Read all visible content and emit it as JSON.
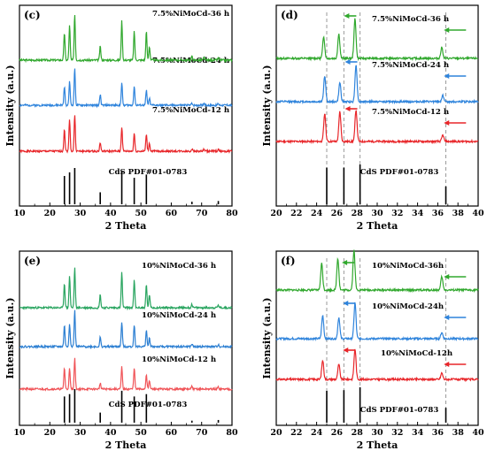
{
  "chart_data": [
    {
      "type": "line",
      "panel_label": "(c)",
      "xlabel": "2 Theta",
      "ylabel": "Intensity (a.u.)",
      "xlim": [
        10,
        80
      ],
      "xticks": [
        10,
        20,
        30,
        40,
        50,
        60,
        70,
        80
      ],
      "reference": {
        "name": "CdS PDF#01-0783",
        "peaks": [
          [
            24.8,
            0.78
          ],
          [
            26.5,
            0.88
          ],
          [
            28.2,
            1.0
          ],
          [
            36.6,
            0.33
          ],
          [
            43.7,
            0.9
          ],
          [
            47.8,
            0.73
          ],
          [
            51.8,
            0.82
          ],
          [
            66.8,
            0.07
          ],
          [
            75.5,
            0.09
          ]
        ]
      },
      "series": [
        {
          "name": "7.5%NiMoCd-12 h",
          "color": "#e8262a",
          "peaks": [
            [
              24.8,
              0.55
            ],
            [
              26.5,
              0.8
            ],
            [
              28.2,
              0.9
            ],
            [
              36.6,
              0.22
            ],
            [
              43.7,
              0.6
            ],
            [
              47.8,
              0.45
            ],
            [
              51.8,
              0.42
            ],
            [
              52.8,
              0.2
            ],
            [
              66.8,
              0.06
            ],
            [
              70.8,
              0.05
            ],
            [
              75.5,
              0.04
            ]
          ]
        },
        {
          "name": "7.5%NiMoCd-24 h",
          "color": "#2f84dc",
          "peaks": [
            [
              24.8,
              0.45
            ],
            [
              26.5,
              0.6
            ],
            [
              28.2,
              0.92
            ],
            [
              36.6,
              0.26
            ],
            [
              43.7,
              0.55
            ],
            [
              47.8,
              0.48
            ],
            [
              51.8,
              0.38
            ],
            [
              52.8,
              0.18
            ],
            [
              66.8,
              0.06
            ],
            [
              70.8,
              0.05
            ],
            [
              75.5,
              0.04
            ]
          ]
        },
        {
          "name": "7.5%NiMoCd-36 h",
          "color": "#31a82e",
          "peaks": [
            [
              24.8,
              0.6
            ],
            [
              26.5,
              0.75
            ],
            [
              28.2,
              1.0
            ],
            [
              36.6,
              0.3
            ],
            [
              43.7,
              0.85
            ],
            [
              47.8,
              0.62
            ],
            [
              51.8,
              0.62
            ],
            [
              52.8,
              0.3
            ],
            [
              66.8,
              0.08
            ],
            [
              70.8,
              0.06
            ],
            [
              75.5,
              0.05
            ]
          ]
        }
      ]
    },
    {
      "type": "line",
      "panel_label": "(d)",
      "xlabel": "2 Theta",
      "ylabel": "Intensity (a.u.)",
      "xlim": [
        20,
        40
      ],
      "xticks": [
        20,
        22,
        24,
        26,
        28,
        30,
        32,
        34,
        36,
        38,
        40
      ],
      "dashed_lines": [
        25.0,
        26.7,
        28.3,
        36.8
      ],
      "reference": {
        "name": "CdS PDF#01-0783",
        "peaks": [
          [
            25.0,
            0.92
          ],
          [
            26.7,
            0.92
          ],
          [
            28.3,
            1.0
          ],
          [
            36.8,
            0.45
          ]
        ]
      },
      "series": [
        {
          "name": "7.5%NiMoCd-12 h",
          "color": "#e8262a",
          "peaks": [
            [
              24.8,
              0.65
            ],
            [
              26.3,
              0.7
            ],
            [
              27.9,
              0.75
            ],
            [
              36.5,
              0.15
            ]
          ]
        },
        {
          "name": "7.5%NiMoCd-24 h",
          "color": "#2f84dc",
          "peaks": [
            [
              24.8,
              0.6
            ],
            [
              26.3,
              0.45
            ],
            [
              27.9,
              0.88
            ],
            [
              36.5,
              0.15
            ]
          ]
        },
        {
          "name": "7.5%NiMoCd-36 h",
          "color": "#31a82e",
          "peaks": [
            [
              24.7,
              0.5
            ],
            [
              26.2,
              0.55
            ],
            [
              27.8,
              0.9
            ],
            [
              36.4,
              0.25
            ]
          ]
        }
      ]
    },
    {
      "type": "line",
      "panel_label": "(e)",
      "xlabel": "2 Theta",
      "ylabel": "Intensity (a.u.)",
      "xlim": [
        10,
        80
      ],
      "xticks": [
        10,
        20,
        30,
        40,
        50,
        60,
        70,
        80
      ],
      "reference": {
        "name": "CdS PDF#01-0783",
        "peaks": [
          [
            24.8,
            0.78
          ],
          [
            26.5,
            0.85
          ],
          [
            28.2,
            1.0
          ],
          [
            36.6,
            0.3
          ],
          [
            43.7,
            0.95
          ],
          [
            47.8,
            0.78
          ],
          [
            51.8,
            0.85
          ],
          [
            66.8,
            0.06
          ],
          [
            75.5,
            0.08
          ]
        ]
      },
      "series": [
        {
          "name": "10%NiMoCd-12 h",
          "color": "#f05458",
          "peaks": [
            [
              24.8,
              0.5
            ],
            [
              26.5,
              0.48
            ],
            [
              28.2,
              0.72
            ],
            [
              36.6,
              0.14
            ],
            [
              43.7,
              0.52
            ],
            [
              47.8,
              0.5
            ],
            [
              51.8,
              0.35
            ],
            [
              52.8,
              0.2
            ],
            [
              66.8,
              0.06
            ],
            [
              75.5,
              0.05
            ]
          ]
        },
        {
          "name": "10%NiMoCd-24 h",
          "color": "#2c7fd2",
          "peaks": [
            [
              24.8,
              0.5
            ],
            [
              26.5,
              0.55
            ],
            [
              28.2,
              0.85
            ],
            [
              36.6,
              0.22
            ],
            [
              43.7,
              0.58
            ],
            [
              47.8,
              0.52
            ],
            [
              51.8,
              0.4
            ],
            [
              52.8,
              0.2
            ],
            [
              66.8,
              0.06
            ],
            [
              75.5,
              0.05
            ]
          ]
        },
        {
          "name": "10%NiMoCd-36 h",
          "color": "#2aa560",
          "peaks": [
            [
              24.8,
              0.55
            ],
            [
              26.5,
              0.72
            ],
            [
              28.2,
              0.9
            ],
            [
              36.6,
              0.3
            ],
            [
              43.7,
              0.8
            ],
            [
              47.8,
              0.62
            ],
            [
              51.8,
              0.52
            ],
            [
              52.8,
              0.3
            ],
            [
              66.8,
              0.08
            ],
            [
              75.5,
              0.06
            ]
          ]
        }
      ]
    },
    {
      "type": "line",
      "panel_label": "(f)",
      "xlabel": "2 Theta",
      "ylabel": "Intensity (a.u.)",
      "xlim": [
        20,
        40
      ],
      "xticks": [
        20,
        22,
        24,
        26,
        28,
        30,
        32,
        34,
        36,
        38,
        40
      ],
      "dashed_lines": [
        25.0,
        26.7,
        28.3,
        36.8
      ],
      "reference": {
        "name": "CdS PDF#01-0783",
        "peaks": [
          [
            25.0,
            0.9
          ],
          [
            26.7,
            0.92
          ],
          [
            28.3,
            1.0
          ],
          [
            36.8,
            0.42
          ]
        ]
      },
      "series": [
        {
          "name": "10%NiMoCd-12h",
          "color": "#e8262a",
          "peaks": [
            [
              24.6,
              0.45
            ],
            [
              26.2,
              0.35
            ],
            [
              27.8,
              0.72
            ],
            [
              36.4,
              0.15
            ]
          ]
        },
        {
          "name": "10%NiMoCd-24h",
          "color": "#2f84dc",
          "peaks": [
            [
              24.6,
              0.55
            ],
            [
              26.2,
              0.5
            ],
            [
              27.8,
              0.85
            ],
            [
              36.4,
              0.15
            ]
          ]
        },
        {
          "name": "10%NiMoCd-36h",
          "color": "#31a82e",
          "peaks": [
            [
              24.5,
              0.6
            ],
            [
              26.1,
              0.72
            ],
            [
              27.7,
              0.9
            ],
            [
              36.4,
              0.3
            ]
          ]
        }
      ]
    }
  ]
}
